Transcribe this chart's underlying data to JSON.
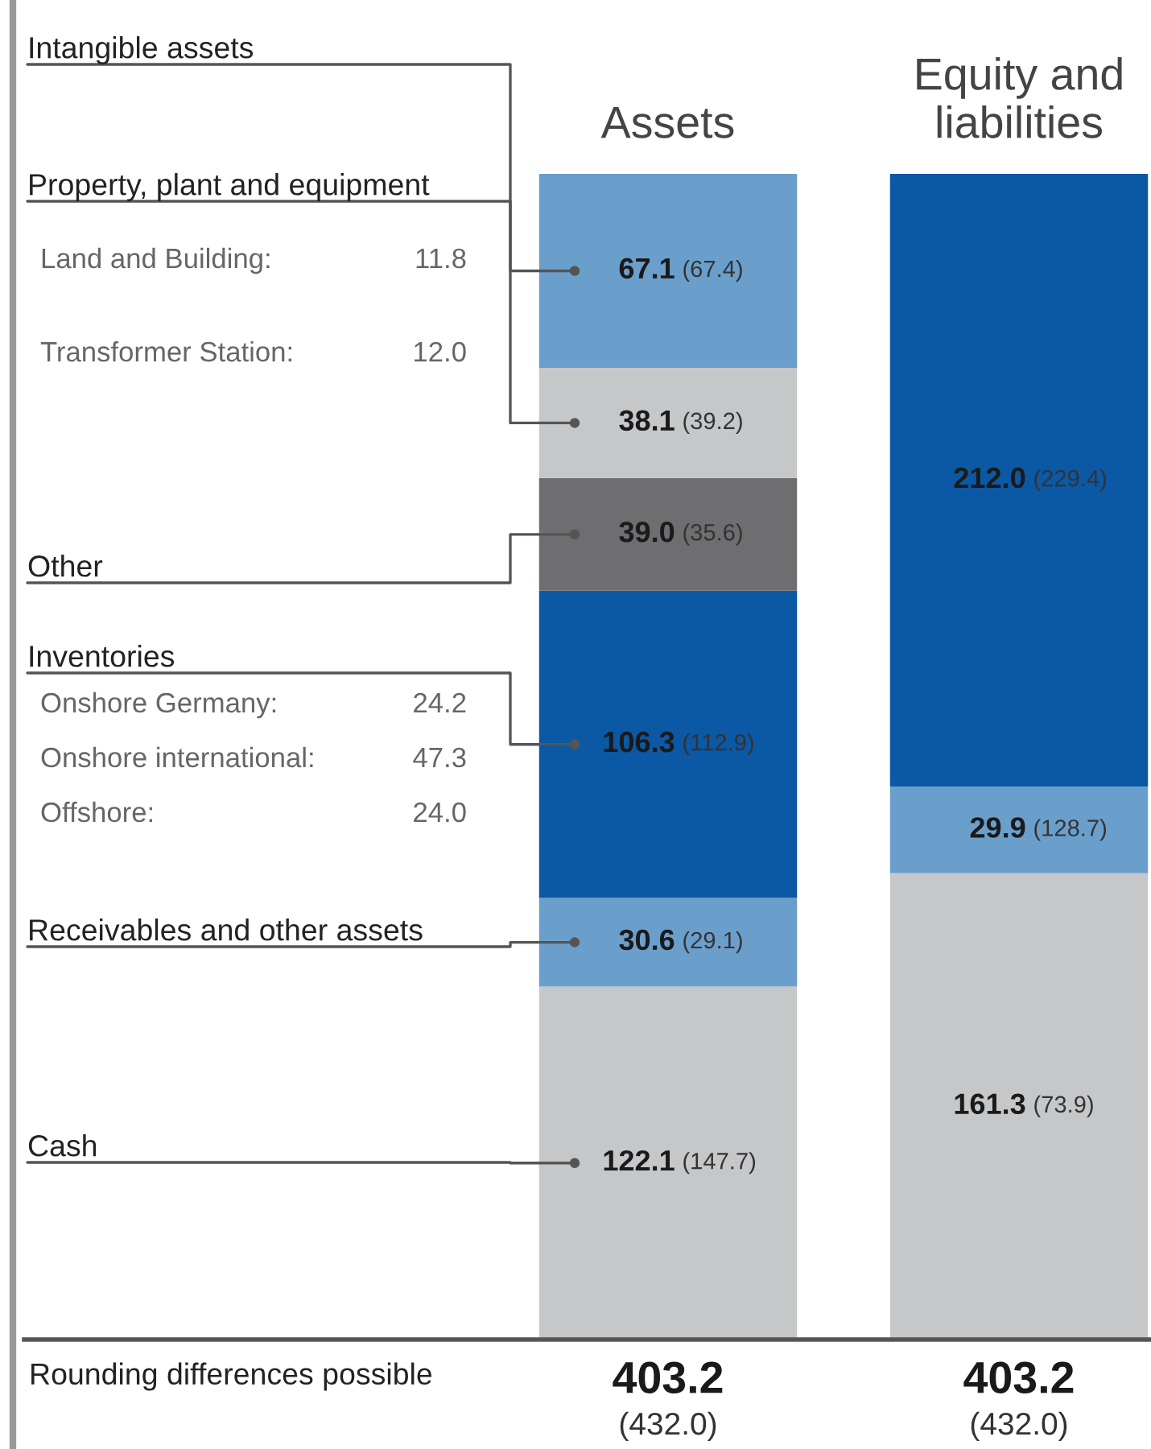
{
  "chart_data": {
    "type": "bar",
    "stacked": true,
    "categories": [
      "Assets",
      "Equity and liabilities"
    ],
    "series": [
      {
        "name": "Cash",
        "color": "#c6c7c9",
        "values": [
          122.1,
          null
        ],
        "value_labels": [
          "122.1 (147.7)",
          null
        ]
      },
      {
        "name": "Receivables and other assets",
        "color": "#6b9fcb",
        "values": [
          30.6,
          null
        ],
        "value_labels": [
          "30.6 (29.1)",
          null
        ]
      },
      {
        "name": "Inventories",
        "color": "#0b58a5",
        "values": [
          106.3,
          null
        ],
        "value_labels": [
          "106.3 (112.9)",
          null
        ]
      },
      {
        "name": "Other",
        "color": "#6e6e70",
        "values": [
          39.0,
          null
        ],
        "value_labels": [
          "39.0 (35.6)",
          null
        ]
      },
      {
        "name": "Property, plant and equipment",
        "color": "#c6c7c9",
        "values": [
          38.1,
          null
        ],
        "value_labels": [
          "38.1 (39.2)",
          null
        ]
      },
      {
        "name": "Intangible assets",
        "color": "#6b9fcb",
        "values": [
          67.1,
          null
        ],
        "value_labels": [
          "67.1 (67.4)",
          null
        ]
      },
      {
        "color": "#c6c7c9",
        "values": [
          null,
          161.3
        ],
        "value_labels": [
          null,
          "161.3 (73.9)"
        ]
      },
      {
        "color": "#6b9fcb",
        "values": [
          null,
          29.9
        ],
        "value_labels": [
          null,
          "29.9 (128.7)"
        ]
      },
      {
        "color": "#0b58a5",
        "values": [
          null,
          212.0
        ],
        "value_labels": [
          null,
          "212.0 (229.4)"
        ]
      }
    ],
    "totals": [
      "403.2 (432.0)",
      "403.2 (432.0)"
    ],
    "annotations": [
      "Land and Building: 11.8",
      "Transformer Station: 12.0",
      "Onshore Germany: 24.2",
      "Onshore international: 47.3",
      "Offshore: 24.0",
      "Rounding differences possible"
    ],
    "tick_labels": "x",
    "grid": false,
    "legend": false
  }
}
